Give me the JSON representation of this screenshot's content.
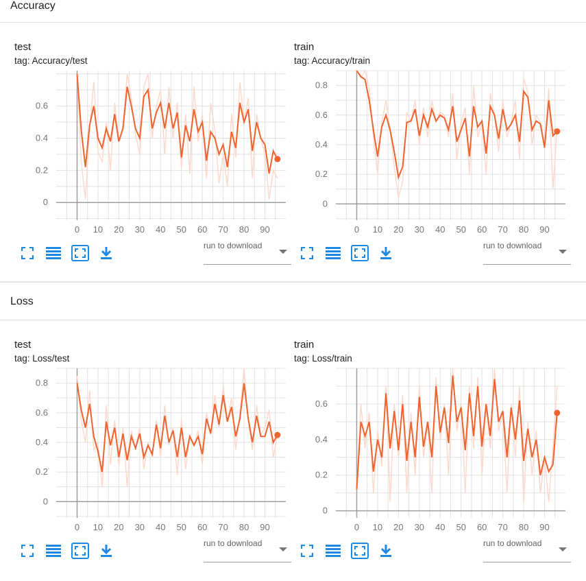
{
  "colors": {
    "smoothed": "#f0632f",
    "raw": "#fcd9cc",
    "grid": "#e0e0e0",
    "axis": "#9e9e9e",
    "icon": "#1e88e5"
  },
  "icons": [
    "fit-domain-icon",
    "toggle-log-icon",
    "fullscreen-icon",
    "download-icon"
  ],
  "sections": [
    {
      "title": "Accuracy",
      "cards": [
        {
          "title": "test",
          "tag": "tag: Accuracy/test",
          "run_placeholder": "run to download",
          "chart_data": {
            "type": "line",
            "xlabel": "",
            "ylabel": "",
            "xlim": [
              -10,
              100
            ],
            "ylim": [
              -0.11,
              0.82
            ],
            "xticks": [
              0,
              10,
              20,
              30,
              40,
              50,
              60,
              70,
              80,
              90
            ],
            "yticks": [
              0,
              0.2,
              0.4,
              0.6
            ],
            "grid": true,
            "x": [
              0,
              2,
              4,
              6,
              8,
              10,
              12,
              14,
              16,
              18,
              20,
              22,
              24,
              26,
              28,
              30,
              32,
              34,
              36,
              38,
              40,
              42,
              44,
              46,
              48,
              50,
              52,
              54,
              56,
              58,
              60,
              62,
              64,
              66,
              68,
              70,
              72,
              74,
              76,
              78,
              80,
              82,
              84,
              86,
              88,
              90,
              92,
              94,
              96
            ],
            "raw": [
              0.8,
              0.25,
              0.02,
              0.45,
              0.75,
              0.32,
              0.25,
              0.5,
              0.2,
              0.62,
              0.38,
              0.48,
              0.8,
              0.65,
              0.42,
              0.3,
              0.72,
              0.8,
              0.4,
              0.6,
              0.7,
              0.3,
              0.72,
              0.4,
              0.62,
              0.22,
              0.55,
              0.18,
              0.72,
              0.38,
              0.55,
              0.15,
              0.62,
              0.45,
              0.12,
              0.3,
              0.1,
              0.55,
              0.28,
              0.75,
              0.5,
              0.65,
              0.15,
              0.55,
              0.4,
              0.3,
              0.02,
              0.2,
              0.15
            ],
            "smoothed": [
              0.8,
              0.45,
              0.22,
              0.48,
              0.6,
              0.4,
              0.34,
              0.46,
              0.38,
              0.55,
              0.38,
              0.46,
              0.72,
              0.6,
              0.46,
              0.4,
              0.66,
              0.7,
              0.46,
              0.56,
              0.62,
              0.46,
              0.62,
              0.46,
              0.56,
              0.28,
              0.48,
              0.38,
              0.58,
              0.44,
              0.5,
              0.26,
              0.44,
              0.4,
              0.3,
              0.36,
              0.22,
              0.44,
              0.34,
              0.62,
              0.5,
              0.58,
              0.32,
              0.5,
              0.4,
              0.36,
              0.18,
              0.32,
              0.27
            ]
          }
        },
        {
          "title": "train",
          "tag": "tag: Accuracy/train",
          "run_placeholder": "run to download",
          "chart_data": {
            "type": "line",
            "xlabel": "",
            "ylabel": "",
            "xlim": [
              -10,
              100
            ],
            "ylim": [
              -0.11,
              0.9
            ],
            "xticks": [
              0,
              10,
              20,
              30,
              40,
              50,
              60,
              70,
              80,
              90
            ],
            "yticks": [
              0,
              0.2,
              0.4,
              0.6,
              0.8
            ],
            "grid": true,
            "x": [
              0,
              2,
              4,
              6,
              8,
              10,
              12,
              14,
              16,
              18,
              20,
              22,
              24,
              26,
              28,
              30,
              32,
              34,
              36,
              38,
              40,
              42,
              44,
              46,
              48,
              50,
              52,
              54,
              56,
              58,
              60,
              62,
              64,
              66,
              68,
              70,
              72,
              74,
              76,
              78,
              80,
              82,
              84,
              86,
              88,
              90,
              92,
              94,
              96
            ],
            "raw": [
              0.9,
              0.85,
              0.9,
              0.78,
              0.45,
              0.2,
              0.55,
              0.7,
              0.5,
              0.25,
              0.04,
              0.15,
              0.62,
              0.55,
              0.7,
              0.4,
              0.65,
              0.45,
              0.7,
              0.55,
              0.62,
              0.6,
              0.45,
              0.75,
              0.3,
              0.55,
              0.65,
              0.2,
              0.8,
              0.45,
              0.55,
              0.2,
              0.75,
              0.6,
              0.35,
              0.7,
              0.45,
              0.55,
              0.7,
              0.3,
              0.85,
              0.75,
              0.4,
              0.6,
              0.55,
              0.4,
              0.78,
              0.1,
              0.5
            ],
            "smoothed": [
              0.9,
              0.86,
              0.84,
              0.7,
              0.5,
              0.32,
              0.52,
              0.6,
              0.5,
              0.35,
              0.18,
              0.25,
              0.55,
              0.56,
              0.64,
              0.46,
              0.6,
              0.52,
              0.64,
              0.56,
              0.6,
              0.58,
              0.5,
              0.66,
              0.42,
              0.5,
              0.58,
              0.32,
              0.66,
              0.52,
              0.56,
              0.34,
              0.66,
              0.6,
              0.44,
              0.64,
              0.5,
              0.54,
              0.6,
              0.42,
              0.76,
              0.72,
              0.5,
              0.56,
              0.54,
              0.38,
              0.7,
              0.46,
              0.49
            ]
          }
        }
      ]
    },
    {
      "title": "Loss",
      "cards": [
        {
          "title": "test",
          "tag": "tag: Loss/test",
          "run_placeholder": "run to download",
          "chart_data": {
            "type": "line",
            "xlabel": "",
            "ylabel": "",
            "xlim": [
              -10,
              100
            ],
            "ylim": [
              -0.11,
              0.9
            ],
            "xticks": [
              0,
              10,
              20,
              30,
              40,
              50,
              60,
              70,
              80,
              90
            ],
            "yticks": [
              0,
              0.2,
              0.4,
              0.6,
              0.8
            ],
            "grid": true,
            "x": [
              0,
              2,
              4,
              6,
              8,
              10,
              12,
              14,
              16,
              18,
              20,
              22,
              24,
              26,
              28,
              30,
              32,
              34,
              36,
              38,
              40,
              42,
              44,
              46,
              48,
              50,
              52,
              54,
              56,
              58,
              60,
              62,
              64,
              66,
              68,
              70,
              72,
              74,
              76,
              78,
              80,
              82,
              84,
              86,
              88,
              90,
              92,
              94,
              96
            ],
            "raw": [
              0.85,
              0.55,
              0.4,
              0.75,
              0.35,
              0.4,
              0.1,
              0.65,
              0.25,
              0.55,
              0.25,
              0.5,
              0.1,
              0.48,
              0.35,
              0.5,
              0.22,
              0.4,
              0.3,
              0.55,
              0.3,
              0.65,
              0.38,
              0.5,
              0.18,
              0.55,
              0.22,
              0.45,
              0.38,
              0.48,
              0.25,
              0.6,
              0.45,
              0.72,
              0.5,
              0.78,
              0.55,
              0.7,
              0.35,
              0.6,
              0.9,
              0.55,
              0.35,
              0.65,
              0.45,
              0.5,
              0.62,
              0.3,
              0.45
            ],
            "smoothed": [
              0.8,
              0.62,
              0.5,
              0.66,
              0.44,
              0.34,
              0.2,
              0.54,
              0.38,
              0.5,
              0.3,
              0.46,
              0.28,
              0.44,
              0.36,
              0.46,
              0.3,
              0.38,
              0.32,
              0.52,
              0.36,
              0.58,
              0.4,
              0.48,
              0.3,
              0.5,
              0.3,
              0.44,
              0.38,
              0.44,
              0.32,
              0.56,
              0.46,
              0.66,
              0.52,
              0.72,
              0.54,
              0.64,
              0.44,
              0.56,
              0.8,
              0.56,
              0.4,
              0.58,
              0.44,
              0.44,
              0.54,
              0.4,
              0.45
            ]
          }
        },
        {
          "title": "train",
          "tag": "tag: Loss/train",
          "run_placeholder": "run to download",
          "chart_data": {
            "type": "line",
            "xlabel": "",
            "ylabel": "",
            "xlim": [
              -10,
              100
            ],
            "ylim": [
              -0.04,
              0.8
            ],
            "xticks": [
              0,
              10,
              20,
              30,
              40,
              50,
              60,
              70,
              80,
              90
            ],
            "yticks": [
              0,
              0.2,
              0.4,
              0.6
            ],
            "grid": true,
            "x": [
              0,
              2,
              4,
              6,
              8,
              10,
              12,
              14,
              16,
              18,
              20,
              22,
              24,
              26,
              28,
              30,
              32,
              34,
              36,
              38,
              40,
              42,
              44,
              46,
              48,
              50,
              52,
              54,
              56,
              58,
              60,
              62,
              64,
              66,
              68,
              70,
              72,
              74,
              76,
              78,
              80,
              82,
              84,
              86,
              88,
              90,
              92,
              94,
              96
            ],
            "raw": [
              0.12,
              0.6,
              0.35,
              0.55,
              0.1,
              0.45,
              0.25,
              0.7,
              0.05,
              0.6,
              0.3,
              0.65,
              0.1,
              0.55,
              0.2,
              0.7,
              0.3,
              0.5,
              0.1,
              0.75,
              0.4,
              0.6,
              0.2,
              0.8,
              0.45,
              0.6,
              0.1,
              0.7,
              0.35,
              0.75,
              0.2,
              0.6,
              0.35,
              0.8,
              0.45,
              0.55,
              0.1,
              0.6,
              0.3,
              0.7,
              0.05,
              0.5,
              0.2,
              0.45,
              0.1,
              0.3,
              0.05,
              0.35,
              0.7
            ],
            "smoothed": [
              0.12,
              0.5,
              0.42,
              0.5,
              0.22,
              0.4,
              0.3,
              0.66,
              0.35,
              0.56,
              0.34,
              0.6,
              0.28,
              0.5,
              0.3,
              0.64,
              0.36,
              0.5,
              0.3,
              0.7,
              0.44,
              0.58,
              0.38,
              0.76,
              0.5,
              0.58,
              0.34,
              0.66,
              0.42,
              0.7,
              0.36,
              0.6,
              0.42,
              0.74,
              0.5,
              0.56,
              0.3,
              0.58,
              0.4,
              0.62,
              0.28,
              0.46,
              0.3,
              0.4,
              0.2,
              0.3,
              0.22,
              0.26,
              0.55
            ]
          }
        }
      ]
    }
  ]
}
